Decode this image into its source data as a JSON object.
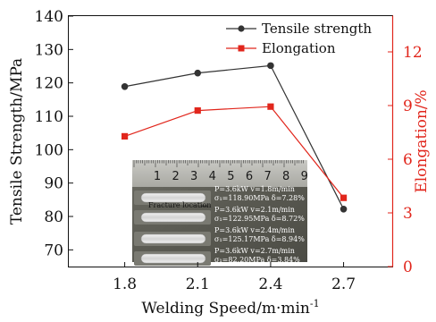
{
  "chart_data": {
    "type": "line",
    "x": [
      1.8,
      2.1,
      2.4,
      2.7
    ],
    "x_ticks": [
      "1.8",
      "2.1",
      "2.4",
      "2.7"
    ],
    "xlabel": "Welding Speed/m·min",
    "xlabel_superscript": "-1",
    "xlim": [
      1.57,
      2.9
    ],
    "ylabel_left": "Tensile Strength/MPa",
    "ylim_left": [
      65,
      140
    ],
    "yticks_left": [
      70,
      80,
      90,
      100,
      110,
      120,
      130,
      140
    ],
    "ylabel_right": "Elongation/%",
    "ylim_right": [
      0,
      14
    ],
    "yticks_right": [
      0,
      3,
      6,
      9,
      12
    ],
    "legend_position": "top-right",
    "grid": false,
    "series": [
      {
        "name": "Tensile strength",
        "axis": "left",
        "color": "#333333",
        "marker": "circle",
        "values": [
          118.9,
          122.95,
          125.17,
          82.2
        ]
      },
      {
        "name": "Elongation",
        "axis": "right",
        "color": "#e1261c",
        "marker": "square",
        "values": [
          7.28,
          8.72,
          8.94,
          3.84
        ]
      }
    ],
    "inset": {
      "ruler_numbers": [
        "1",
        "2",
        "3",
        "4",
        "5",
        "6",
        "7",
        "8",
        "9"
      ],
      "label": "Fracture location",
      "specimens": [
        {
          "line1": "P=3.6kW   v=1.8m/min",
          "line2": "σ₁=118.90MPa   δ=7.28%"
        },
        {
          "line1": "P=3.6kW   v=2.1m/min",
          "line2": "σ₁=122.95MPa   δ=8.72%"
        },
        {
          "line1": "P=3.6kW   v=2.4m/min",
          "line2": "σ₁=125.17MPa   δ=8.94%"
        },
        {
          "line1": "P=3.6kW   v=2.7m/min",
          "line2": "σ₁=82.20MPa   δ=3.84%"
        }
      ]
    }
  }
}
